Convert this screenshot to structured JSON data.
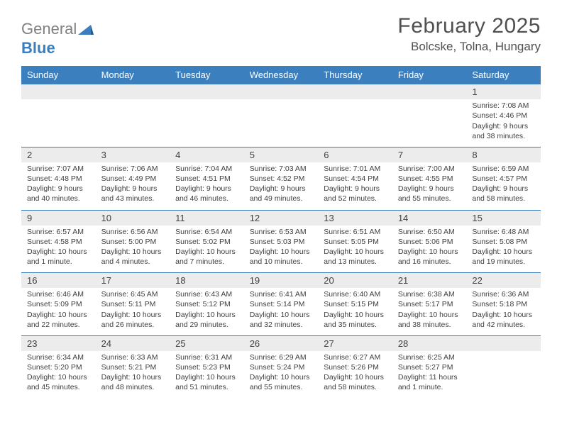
{
  "logo": {
    "part1": "General",
    "part2": "Blue"
  },
  "title": "February 2025",
  "location": "Bolcske, Tolna, Hungary",
  "colors": {
    "header_bg": "#3b7fbf",
    "header_text": "#ffffff",
    "daynum_bg": "#ececec",
    "border": "#3b7fbf",
    "text": "#404040",
    "logo_gray": "#808080",
    "logo_blue": "#3b7fbf"
  },
  "day_names": [
    "Sunday",
    "Monday",
    "Tuesday",
    "Wednesday",
    "Thursday",
    "Friday",
    "Saturday"
  ],
  "weeks": [
    {
      "nums": [
        "",
        "",
        "",
        "",
        "",
        "",
        "1"
      ],
      "details": [
        null,
        null,
        null,
        null,
        null,
        null,
        {
          "sunrise": "Sunrise: 7:08 AM",
          "sunset": "Sunset: 4:46 PM",
          "daylight": "Daylight: 9 hours and 38 minutes."
        }
      ]
    },
    {
      "nums": [
        "2",
        "3",
        "4",
        "5",
        "6",
        "7",
        "8"
      ],
      "details": [
        {
          "sunrise": "Sunrise: 7:07 AM",
          "sunset": "Sunset: 4:48 PM",
          "daylight": "Daylight: 9 hours and 40 minutes."
        },
        {
          "sunrise": "Sunrise: 7:06 AM",
          "sunset": "Sunset: 4:49 PM",
          "daylight": "Daylight: 9 hours and 43 minutes."
        },
        {
          "sunrise": "Sunrise: 7:04 AM",
          "sunset": "Sunset: 4:51 PM",
          "daylight": "Daylight: 9 hours and 46 minutes."
        },
        {
          "sunrise": "Sunrise: 7:03 AM",
          "sunset": "Sunset: 4:52 PM",
          "daylight": "Daylight: 9 hours and 49 minutes."
        },
        {
          "sunrise": "Sunrise: 7:01 AM",
          "sunset": "Sunset: 4:54 PM",
          "daylight": "Daylight: 9 hours and 52 minutes."
        },
        {
          "sunrise": "Sunrise: 7:00 AM",
          "sunset": "Sunset: 4:55 PM",
          "daylight": "Daylight: 9 hours and 55 minutes."
        },
        {
          "sunrise": "Sunrise: 6:59 AM",
          "sunset": "Sunset: 4:57 PM",
          "daylight": "Daylight: 9 hours and 58 minutes."
        }
      ]
    },
    {
      "nums": [
        "9",
        "10",
        "11",
        "12",
        "13",
        "14",
        "15"
      ],
      "details": [
        {
          "sunrise": "Sunrise: 6:57 AM",
          "sunset": "Sunset: 4:58 PM",
          "daylight": "Daylight: 10 hours and 1 minute."
        },
        {
          "sunrise": "Sunrise: 6:56 AM",
          "sunset": "Sunset: 5:00 PM",
          "daylight": "Daylight: 10 hours and 4 minutes."
        },
        {
          "sunrise": "Sunrise: 6:54 AM",
          "sunset": "Sunset: 5:02 PM",
          "daylight": "Daylight: 10 hours and 7 minutes."
        },
        {
          "sunrise": "Sunrise: 6:53 AM",
          "sunset": "Sunset: 5:03 PM",
          "daylight": "Daylight: 10 hours and 10 minutes."
        },
        {
          "sunrise": "Sunrise: 6:51 AM",
          "sunset": "Sunset: 5:05 PM",
          "daylight": "Daylight: 10 hours and 13 minutes."
        },
        {
          "sunrise": "Sunrise: 6:50 AM",
          "sunset": "Sunset: 5:06 PM",
          "daylight": "Daylight: 10 hours and 16 minutes."
        },
        {
          "sunrise": "Sunrise: 6:48 AM",
          "sunset": "Sunset: 5:08 PM",
          "daylight": "Daylight: 10 hours and 19 minutes."
        }
      ]
    },
    {
      "nums": [
        "16",
        "17",
        "18",
        "19",
        "20",
        "21",
        "22"
      ],
      "details": [
        {
          "sunrise": "Sunrise: 6:46 AM",
          "sunset": "Sunset: 5:09 PM",
          "daylight": "Daylight: 10 hours and 22 minutes."
        },
        {
          "sunrise": "Sunrise: 6:45 AM",
          "sunset": "Sunset: 5:11 PM",
          "daylight": "Daylight: 10 hours and 26 minutes."
        },
        {
          "sunrise": "Sunrise: 6:43 AM",
          "sunset": "Sunset: 5:12 PM",
          "daylight": "Daylight: 10 hours and 29 minutes."
        },
        {
          "sunrise": "Sunrise: 6:41 AM",
          "sunset": "Sunset: 5:14 PM",
          "daylight": "Daylight: 10 hours and 32 minutes."
        },
        {
          "sunrise": "Sunrise: 6:40 AM",
          "sunset": "Sunset: 5:15 PM",
          "daylight": "Daylight: 10 hours and 35 minutes."
        },
        {
          "sunrise": "Sunrise: 6:38 AM",
          "sunset": "Sunset: 5:17 PM",
          "daylight": "Daylight: 10 hours and 38 minutes."
        },
        {
          "sunrise": "Sunrise: 6:36 AM",
          "sunset": "Sunset: 5:18 PM",
          "daylight": "Daylight: 10 hours and 42 minutes."
        }
      ]
    },
    {
      "nums": [
        "23",
        "24",
        "25",
        "26",
        "27",
        "28",
        ""
      ],
      "details": [
        {
          "sunrise": "Sunrise: 6:34 AM",
          "sunset": "Sunset: 5:20 PM",
          "daylight": "Daylight: 10 hours and 45 minutes."
        },
        {
          "sunrise": "Sunrise: 6:33 AM",
          "sunset": "Sunset: 5:21 PM",
          "daylight": "Daylight: 10 hours and 48 minutes."
        },
        {
          "sunrise": "Sunrise: 6:31 AM",
          "sunset": "Sunset: 5:23 PM",
          "daylight": "Daylight: 10 hours and 51 minutes."
        },
        {
          "sunrise": "Sunrise: 6:29 AM",
          "sunset": "Sunset: 5:24 PM",
          "daylight": "Daylight: 10 hours and 55 minutes."
        },
        {
          "sunrise": "Sunrise: 6:27 AM",
          "sunset": "Sunset: 5:26 PM",
          "daylight": "Daylight: 10 hours and 58 minutes."
        },
        {
          "sunrise": "Sunrise: 6:25 AM",
          "sunset": "Sunset: 5:27 PM",
          "daylight": "Daylight: 11 hours and 1 minute."
        },
        null
      ]
    }
  ]
}
